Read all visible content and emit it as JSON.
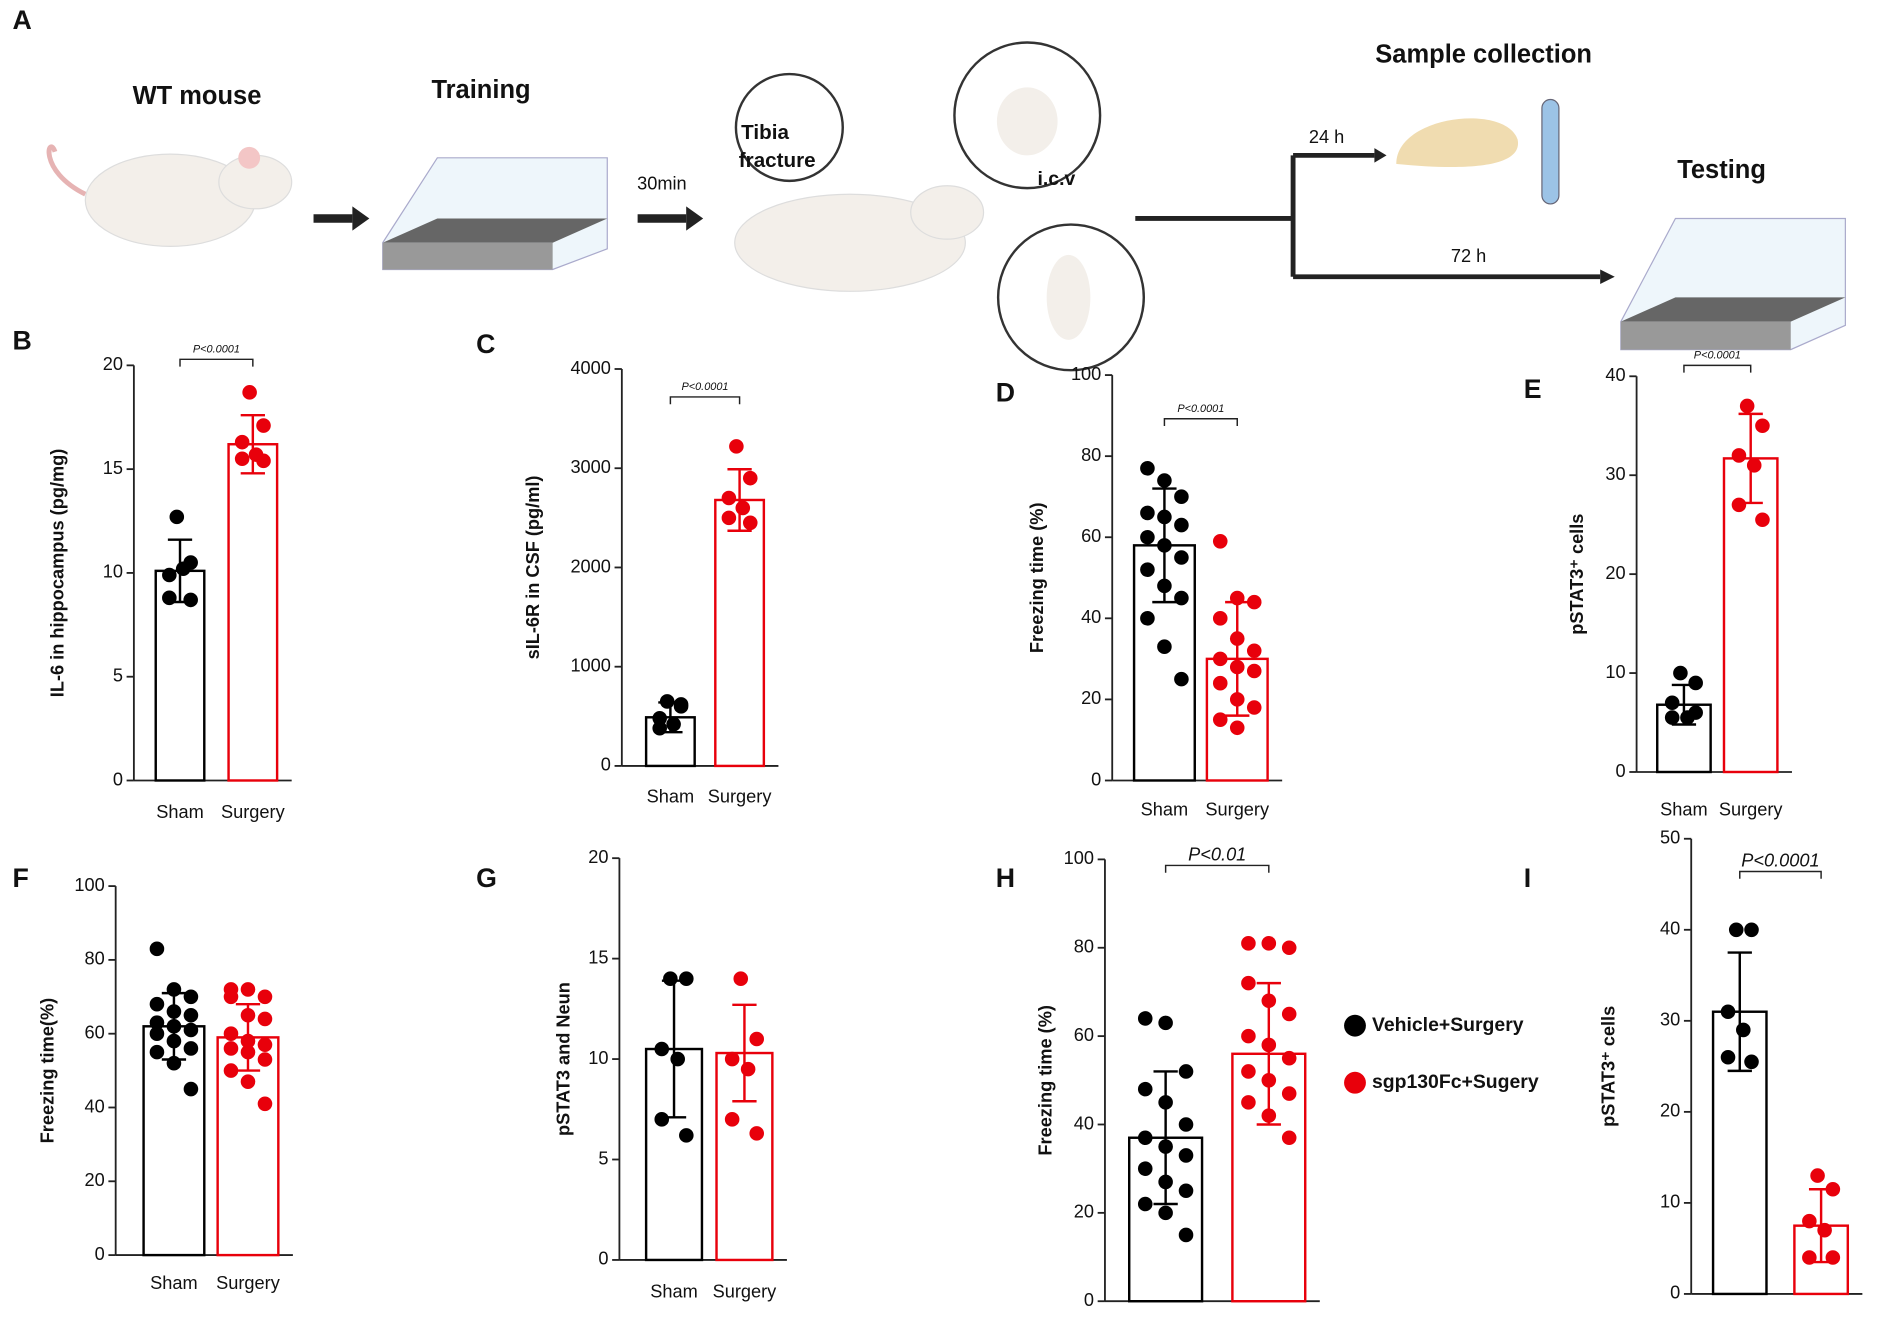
{
  "panel_a": {
    "letter": "A",
    "wt": "WT mouse",
    "training": "Training",
    "delay": "30min",
    "tibia": "Tibia",
    "fracture": "fracture",
    "icv": "i.c.v",
    "t24": "24 h",
    "t72": "72 h",
    "sample": "Sample collection",
    "testing": "Testing"
  },
  "chart_data": [
    {
      "type": "bar",
      "panel": "B",
      "ylabel": "IL-6 in hippocampus (pg/mg)",
      "categories": [
        "Sham",
        "Surgery"
      ],
      "colors": [
        "#000000",
        "#e8000b"
      ],
      "values": [
        10.1,
        16.2
      ],
      "errors": [
        1.5,
        1.4
      ],
      "points": [
        [
          12.7,
          10.5,
          9.9,
          10.2,
          8.8,
          8.7
        ],
        [
          18.7,
          17.1,
          16.3,
          15.7,
          15.5,
          15.4
        ]
      ],
      "annotation": "P<0.0001",
      "ylim": [
        0,
        20
      ],
      "yticks": [
        0,
        5,
        10,
        15,
        20
      ]
    },
    {
      "type": "bar",
      "panel": "C",
      "ylabel": "sIL-6R in CSF (pg/ml)",
      "categories": [
        "Sham",
        "Surgery"
      ],
      "colors": [
        "#000000",
        "#e8000b"
      ],
      "values": [
        490,
        2680
      ],
      "errors": [
        150,
        310
      ],
      "points": [
        [
          650,
          620,
          480,
          420,
          380,
          600
        ],
        [
          3220,
          2900,
          2700,
          2600,
          2500,
          2450
        ]
      ],
      "annotation": "P<0.0001",
      "ylim": [
        0,
        4000
      ],
      "yticks": [
        0,
        1000,
        2000,
        3000,
        4000
      ]
    },
    {
      "type": "bar",
      "panel": "D",
      "ylabel": "Freezing time (%)",
      "categories": [
        "Sham",
        "Surgery"
      ],
      "colors": [
        "#000000",
        "#e8000b"
      ],
      "values": [
        58,
        30
      ],
      "errors": [
        14,
        14
      ],
      "points": [
        [
          77,
          74,
          70,
          66,
          65,
          63,
          60,
          58,
          55,
          52,
          48,
          45,
          40,
          33,
          25
        ],
        [
          59,
          45,
          44,
          40,
          35,
          32,
          30,
          28,
          27,
          24,
          20,
          18,
          15,
          13
        ]
      ],
      "annotation": "P<0.0001",
      "ylim": [
        0,
        100
      ],
      "yticks": [
        0,
        20,
        40,
        60,
        80,
        100
      ]
    },
    {
      "type": "bar",
      "panel": "E",
      "ylabel": "pSTAT3⁺ cells",
      "categories": [
        "Sham",
        "Surgery"
      ],
      "colors": [
        "#000000",
        "#e8000b"
      ],
      "values": [
        6.8,
        31.7
      ],
      "errors": [
        2,
        4.5
      ],
      "points": [
        [
          10,
          9,
          7,
          5.5,
          5.5,
          6
        ],
        [
          37,
          35,
          32,
          31,
          27,
          25.5
        ]
      ],
      "annotation": "P<0.0001",
      "ylim": [
        0,
        40
      ],
      "yticks": [
        0,
        10,
        20,
        30,
        40
      ]
    },
    {
      "type": "bar",
      "panel": "F",
      "ylabel": "Freezing time(%)",
      "categories": [
        "Sham",
        "Surgery"
      ],
      "colors": [
        "#000000",
        "#e8000b"
      ],
      "values": [
        62,
        59
      ],
      "errors": [
        9,
        9
      ],
      "points": [
        [
          83,
          72,
          70,
          68,
          66,
          65,
          63,
          62,
          61,
          60,
          58,
          56,
          55,
          52,
          45
        ],
        [
          72,
          72,
          70,
          70,
          65,
          64,
          60,
          58,
          57,
          56,
          55,
          53,
          50,
          47,
          41
        ]
      ],
      "ylim": [
        0,
        100
      ],
      "yticks": [
        0,
        20,
        40,
        60,
        80,
        100
      ]
    },
    {
      "type": "bar",
      "panel": "G",
      "ylabel": "pSTAT3 and Neun",
      "categories": [
        "Sham",
        "Surgery"
      ],
      "colors": [
        "#000000",
        "#e8000b"
      ],
      "values": [
        10.5,
        10.3
      ],
      "errors": [
        3.4,
        2.4
      ],
      "points": [
        [
          14,
          14,
          10.5,
          10,
          7,
          6.2
        ],
        [
          14,
          11,
          10,
          9.5,
          7,
          6.3
        ]
      ],
      "ylim": [
        0,
        20
      ],
      "yticks": [
        0,
        5,
        10,
        15,
        20
      ]
    },
    {
      "type": "bar",
      "panel": "H",
      "ylabel": "Freezing time (%)",
      "categories": [
        null,
        null
      ],
      "legend": [
        "Vehicle+Surgery",
        "sgp130Fc+Sugery"
      ],
      "colors": [
        "#000000",
        "#e8000b"
      ],
      "values": [
        37,
        56
      ],
      "errors": [
        15,
        16
      ],
      "points": [
        [
          64,
          63,
          52,
          48,
          45,
          40,
          37,
          35,
          33,
          30,
          27,
          25,
          22,
          20,
          15
        ],
        [
          81,
          81,
          80,
          72,
          68,
          65,
          60,
          58,
          55,
          52,
          50,
          47,
          45,
          42,
          37
        ]
      ],
      "annotation": "P<0.01",
      "ylim": [
        0,
        100
      ],
      "yticks": [
        0,
        20,
        40,
        60,
        80,
        100
      ]
    },
    {
      "type": "bar",
      "panel": "I",
      "ylabel": "pSTAT3⁺ cells",
      "categories": [
        null,
        null
      ],
      "colors": [
        "#000000",
        "#e8000b"
      ],
      "values": [
        31,
        7.5
      ],
      "errors": [
        6.5,
        4
      ],
      "points": [
        [
          40,
          40,
          31,
          29,
          26,
          25.5
        ],
        [
          13,
          11.5,
          8,
          7,
          4,
          4
        ]
      ],
      "annotation": "P<0.0001",
      "ylim": [
        0,
        50
      ],
      "yticks": [
        0,
        10,
        20,
        30,
        40,
        50
      ]
    }
  ]
}
